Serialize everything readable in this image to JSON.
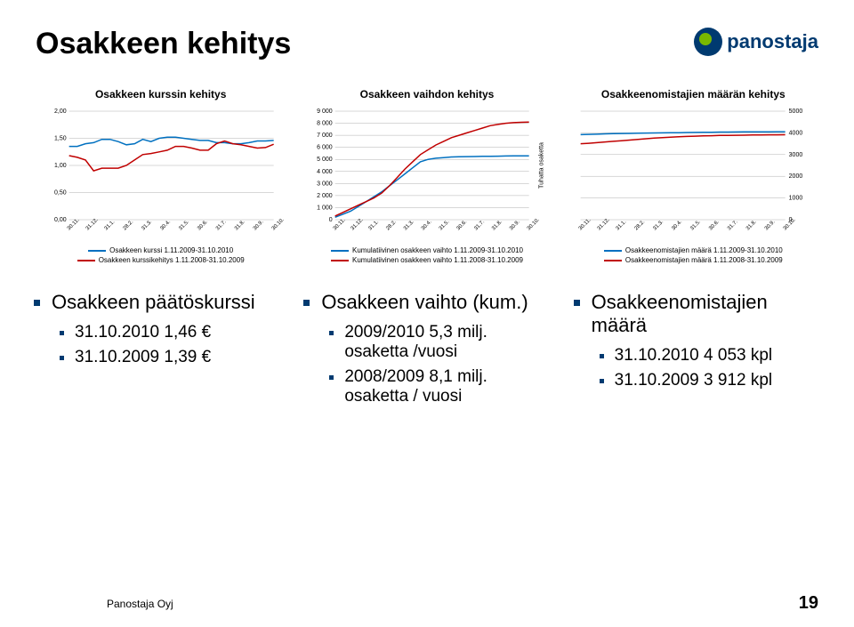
{
  "title": "Osakkeen kehitys",
  "logo_text": "panostaja",
  "footer": {
    "company": "Panostaja Oyj",
    "page": "19"
  },
  "chart1": {
    "title": "Osakkeen kurssin kehitys",
    "type": "line",
    "yticks": [
      "0,00",
      "0,50",
      "1,00",
      "1,50",
      "2,00"
    ],
    "ymin": 0,
    "ymax": 2,
    "xlabels": [
      "30.11.",
      "31.12.",
      "31.1.",
      "28.2.",
      "31.3.",
      "30.4.",
      "31.5.",
      "30.6.",
      "31.7.",
      "31.8.",
      "30.9.",
      "30.10."
    ],
    "series": [
      {
        "color": "#0070c0",
        "label": "Osakkeen kurssi 1.11.2009-31.10.2010",
        "values": [
          1.35,
          1.35,
          1.4,
          1.42,
          1.48,
          1.48,
          1.44,
          1.38,
          1.4,
          1.48,
          1.44,
          1.5,
          1.52,
          1.52,
          1.5,
          1.48,
          1.46,
          1.46,
          1.42,
          1.42,
          1.4,
          1.4,
          1.42,
          1.45,
          1.45,
          1.46
        ]
      },
      {
        "color": "#c00000",
        "label": "Osakkeen kurssikehitys 1.11.2008-31.10.2009",
        "values": [
          1.18,
          1.15,
          1.1,
          0.9,
          0.95,
          0.95,
          0.95,
          1.0,
          1.1,
          1.2,
          1.22,
          1.25,
          1.28,
          1.35,
          1.35,
          1.32,
          1.28,
          1.28,
          1.4,
          1.45,
          1.4,
          1.38,
          1.35,
          1.32,
          1.33,
          1.39
        ]
      }
    ]
  },
  "chart2": {
    "title": "Osakkeen vaihdon kehitys",
    "type": "line",
    "yticks": [
      "0",
      "1 000",
      "2 000",
      "3 000",
      "4 000",
      "5 000",
      "6 000",
      "7 000",
      "8 000",
      "9 000"
    ],
    "ymin": 0,
    "ymax": 9000,
    "ylabel_right": "Tuhatta osaketta",
    "xlabels": [
      "30.11.",
      "31.12.",
      "31.1.",
      "28.2.",
      "31.3.",
      "30.4.",
      "31.5.",
      "30.6.",
      "31.7.",
      "31.8.",
      "30.9.",
      "30.10."
    ],
    "series": [
      {
        "color": "#0070c0",
        "label": "Kumulatiivinen osakkeen vaihto 1.11.2009-31.10.2010",
        "values": [
          200,
          450,
          700,
          1100,
          1500,
          1900,
          2300,
          2800,
          3300,
          3800,
          4300,
          4800,
          5000,
          5100,
          5150,
          5200,
          5220,
          5230,
          5240,
          5250,
          5260,
          5270,
          5280,
          5290,
          5295,
          5300
        ]
      },
      {
        "color": "#c00000",
        "label": "Kumulatiivinen osakkeen vaihto 1.11.2008-31.10.2009",
        "values": [
          300,
          600,
          900,
          1200,
          1500,
          1800,
          2200,
          2800,
          3500,
          4200,
          4800,
          5400,
          5800,
          6200,
          6500,
          6800,
          7000,
          7200,
          7400,
          7600,
          7800,
          7900,
          8000,
          8050,
          8080,
          8100
        ]
      }
    ]
  },
  "chart3": {
    "title": "Osakkeenomistajien määrän kehitys",
    "type": "line",
    "yticks": [
      "0",
      "1000",
      "2000",
      "3000",
      "4000",
      "5000"
    ],
    "ymin": 0,
    "ymax": 5000,
    "xlabels": [
      "30.11.",
      "31.12.",
      "31.1.",
      "28.2.",
      "31.3.",
      "30.4.",
      "31.5.",
      "30.6.",
      "31.7.",
      "31.8.",
      "30.9.",
      "30.10."
    ],
    "series": [
      {
        "color": "#0070c0",
        "label": "Osakkeenomistajien määrä 1.11.2009-31.10.2010",
        "values": [
          3920,
          3930,
          3940,
          3955,
          3965,
          3970,
          3975,
          3985,
          3990,
          3995,
          4000,
          4005,
          4010,
          4015,
          4020,
          4025,
          4030,
          4035,
          4038,
          4040,
          4044,
          4046,
          4048,
          4050,
          4052,
          4053
        ]
      },
      {
        "color": "#c00000",
        "label": "Osakkeenomistajien määrä 1.11.2008-31.10.2009",
        "values": [
          3500,
          3520,
          3550,
          3580,
          3610,
          3640,
          3670,
          3700,
          3730,
          3760,
          3780,
          3800,
          3820,
          3835,
          3850,
          3860,
          3870,
          3880,
          3885,
          3890,
          3895,
          3900,
          3905,
          3908,
          3910,
          3912
        ]
      }
    ],
    "yaxis_right": true
  },
  "bullets": {
    "col1": {
      "h": "Osakkeen päätöskurssi",
      "items": [
        "31.10.2010   1,46 €",
        "31.10.2009   1,39 €"
      ]
    },
    "col2": {
      "h": "Osakkeen vaihto (kum.)",
      "items": [
        "2009/2010 5,3 milj. osaketta /vuosi",
        "2008/2009 8,1 milj. osaketta / vuosi"
      ]
    },
    "col3": {
      "h": "Osakkeenomistajien määrä",
      "items": [
        "31.10.2010  4 053 kpl",
        "31.10.2009  3 912 kpl"
      ]
    }
  },
  "colors": {
    "brand": "#003a70",
    "grid": "#b0b0b0",
    "series_blue": "#0070c0",
    "series_red": "#c00000",
    "bg": "#ffffff"
  }
}
